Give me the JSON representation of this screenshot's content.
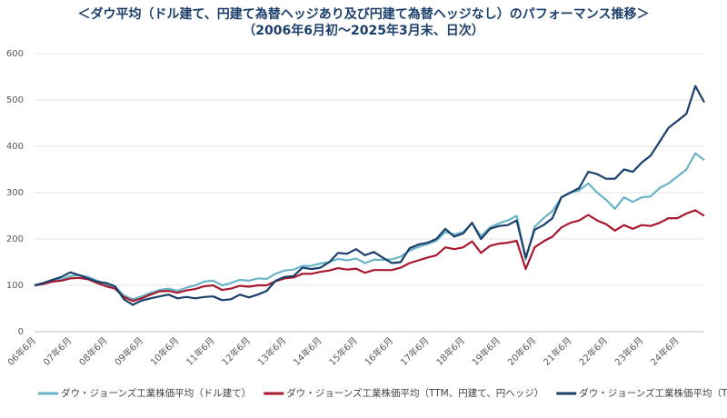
{
  "chart_data": {
    "type": "line",
    "title": "＜ダウ平均（ドル建て、円建て為替ヘッジあり及び円建て為替ヘッジなし）のパフォーマンス推移＞",
    "subtitle": "（2006年6月初～2025年3月末、日次）",
    "categories": [
      "06年6月",
      null,
      null,
      null,
      "07年6月",
      null,
      null,
      null,
      "08年6月",
      null,
      null,
      null,
      "09年6月",
      null,
      null,
      null,
      "10年6月",
      null,
      null,
      null,
      "11年6月",
      null,
      null,
      null,
      "12年6月",
      null,
      null,
      null,
      "13年6月",
      null,
      null,
      null,
      "14年6月",
      null,
      null,
      null,
      "15年6月",
      null,
      null,
      null,
      "16年6月",
      null,
      null,
      null,
      "17年6月",
      null,
      null,
      null,
      "18年6月",
      null,
      null,
      null,
      "19年6月",
      null,
      null,
      null,
      "20年6月",
      null,
      null,
      null,
      "21年6月",
      null,
      null,
      null,
      "22年6月",
      null,
      null,
      null,
      "23年6月",
      null,
      null,
      null,
      "24年6月",
      null,
      null,
      null
    ],
    "series": [
      {
        "name": "ダウ・ジョーンズ工業株価平均（ドル建て）",
        "color": "#6ab4c8",
        "values": [
          100,
          104,
          110,
          113,
          120,
          122,
          118,
          110,
          102,
          98,
          78,
          70,
          76,
          84,
          90,
          93,
          88,
          95,
          100,
          108,
          110,
          100,
          105,
          112,
          110,
          115,
          114,
          125,
          132,
          134,
          142,
          142,
          147,
          150,
          157,
          154,
          158,
          148,
          155,
          155,
          156,
          162,
          175,
          183,
          189,
          196,
          215,
          210,
          215,
          234,
          206,
          225,
          234,
          240,
          250,
          155,
          226,
          245,
          260,
          290,
          300,
          305,
          320,
          300,
          285,
          265,
          290,
          280,
          290,
          292,
          310,
          320,
          335,
          350,
          385,
          370
        ]
      },
      {
        "name": "ダウ・ジョーンズ工業株価平均（TTM、円建て、円ヘッジ）",
        "color": "#a6192e",
        "values": [
          100,
          103,
          108,
          110,
          115,
          116,
          113,
          105,
          98,
          93,
          75,
          66,
          72,
          80,
          87,
          88,
          84,
          89,
          92,
          98,
          100,
          90,
          93,
          99,
          97,
          100,
          100,
          109,
          115,
          117,
          125,
          125,
          129,
          132,
          137,
          134,
          136,
          127,
          133,
          133,
          133,
          138,
          148,
          154,
          160,
          165,
          182,
          178,
          182,
          195,
          170,
          185,
          190,
          192,
          196,
          135,
          182,
          195,
          205,
          225,
          235,
          240,
          252,
          240,
          232,
          218,
          230,
          222,
          230,
          228,
          235,
          245,
          245,
          255,
          262,
          250
        ]
      },
      {
        "name": "ダウ・ジョーンズ工業株価平均（TTM、円建て）",
        "color": "#1b3f6b",
        "values": [
          100,
          105,
          112,
          118,
          128,
          122,
          115,
          108,
          105,
          98,
          70,
          58,
          67,
          72,
          76,
          80,
          72,
          75,
          72,
          75,
          76,
          68,
          70,
          80,
          74,
          80,
          88,
          110,
          118,
          120,
          138,
          135,
          138,
          150,
          170,
          168,
          178,
          165,
          172,
          160,
          148,
          150,
          180,
          188,
          192,
          200,
          222,
          205,
          212,
          235,
          200,
          222,
          228,
          230,
          240,
          160,
          220,
          230,
          245,
          290,
          300,
          310,
          345,
          340,
          330,
          330,
          350,
          345,
          365,
          380,
          410,
          440,
          455,
          470,
          530,
          495
        ]
      }
    ],
    "ylim": [
      0,
      600
    ],
    "yticks": [
      0,
      100,
      200,
      300,
      400,
      500,
      600
    ],
    "grid": true
  }
}
